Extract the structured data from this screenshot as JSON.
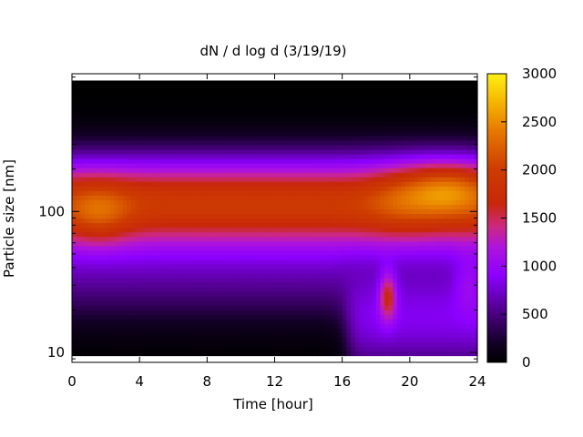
{
  "chart_data": {
    "type": "heatmap",
    "title": "dN / d log d (3/19/19)",
    "xlabel": "Time [hour]",
    "ylabel": "Particle size [nm]",
    "x_range": [
      0,
      24
    ],
    "x_ticks": [
      0,
      4,
      8,
      12,
      16,
      20,
      24
    ],
    "x_tick_labels": [
      "0",
      "4",
      "8",
      "12",
      "16",
      "20",
      "24"
    ],
    "y_scale": "log",
    "y_range": [
      8.5,
      950
    ],
    "y_ticks": [
      10,
      100
    ],
    "y_tick_labels": [
      "10",
      "100"
    ],
    "colorbar": {
      "range": [
        0,
        3000
      ],
      "ticks": [
        0,
        500,
        1000,
        1500,
        2000,
        2500,
        3000
      ],
      "tick_labels": [
        "0",
        "500",
        "1000",
        "1500",
        "2000",
        "2500",
        "3000"
      ],
      "palette": "gnuplot-pm3d-heat",
      "colors": [
        "#000000",
        "#4b0082",
        "#8b00ff",
        "#cc2a8a",
        "#c83200",
        "#e06a00",
        "#ffee10"
      ]
    },
    "data_extent": {
      "size_min_nm": 9.5,
      "size_max_nm": 850
    },
    "bands": [
      {
        "feature": "main accumulation mode",
        "size_range_nm": [
          50,
          250
        ],
        "value_approx": 2000
      },
      {
        "feature": "peak",
        "time_hour": 22.5,
        "size_nm": 150,
        "value_approx": 2700
      },
      {
        "feature": "peak",
        "time_hour": 1.5,
        "size_nm": 95,
        "value_approx": 2300
      },
      {
        "feature": "small-particle event",
        "time_range_hour": [
          16,
          24
        ],
        "size_range_nm": [
          10,
          40
        ],
        "value_approx": 900
      },
      {
        "feature": "plume",
        "time_hour": 18.7,
        "size_range_nm": [
          15,
          35
        ],
        "value_approx": 1800
      }
    ]
  }
}
